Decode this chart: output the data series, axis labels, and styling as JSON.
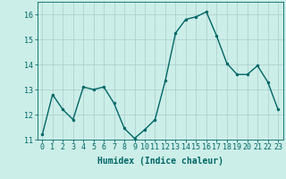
{
  "x": [
    0,
    1,
    2,
    3,
    4,
    5,
    6,
    7,
    8,
    9,
    10,
    11,
    12,
    13,
    14,
    15,
    16,
    17,
    18,
    19,
    20,
    21,
    22,
    23
  ],
  "y": [
    11.2,
    12.8,
    12.2,
    11.8,
    13.1,
    13.0,
    13.1,
    12.45,
    11.45,
    11.05,
    11.4,
    11.8,
    13.35,
    15.25,
    15.8,
    15.9,
    16.1,
    15.15,
    14.05,
    13.6,
    13.6,
    13.95,
    13.3,
    12.2
  ],
  "line_color": "#006666",
  "marker": "o",
  "marker_size": 2.0,
  "bg_color": "#cceee8",
  "grid_color": "#aacccc",
  "xlabel": "Humidex (Indice chaleur)",
  "ylim": [
    11,
    16.5
  ],
  "xlim": [
    -0.5,
    23.5
  ],
  "yticks": [
    11,
    12,
    13,
    14,
    15,
    16
  ],
  "xticks": [
    0,
    1,
    2,
    3,
    4,
    5,
    6,
    7,
    8,
    9,
    10,
    11,
    12,
    13,
    14,
    15,
    16,
    17,
    18,
    19,
    20,
    21,
    22,
    23
  ],
  "xtick_labels": [
    "0",
    "1",
    "2",
    "3",
    "4",
    "5",
    "6",
    "7",
    "8",
    "9",
    "10",
    "11",
    "12",
    "13",
    "14",
    "15",
    "16",
    "17",
    "18",
    "19",
    "20",
    "21",
    "22",
    "23"
  ],
  "xlabel_fontsize": 7.0,
  "tick_fontsize": 6.0,
  "linewidth": 1.0
}
